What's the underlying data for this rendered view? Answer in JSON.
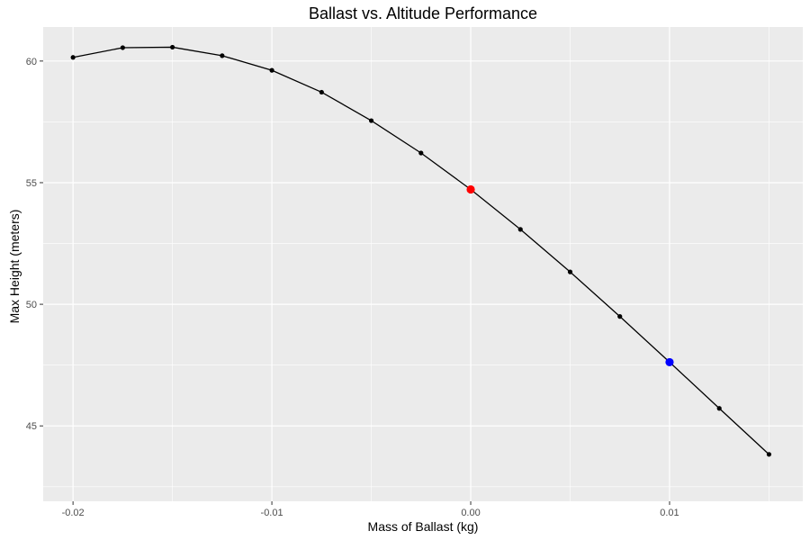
{
  "chart_data": {
    "type": "line",
    "title": "Ballast vs. Altitude Performance",
    "xlabel": "Mass of Ballast (kg)",
    "ylabel": "Max Height (meters)",
    "xlim": [
      -0.0215,
      0.0167
    ],
    "ylim": [
      41.9,
      61.4
    ],
    "x_ticks": [
      -0.02,
      -0.01,
      0.0,
      0.01
    ],
    "x_tick_labels": [
      "-0.02",
      "-0.01",
      "0.00",
      "0.01"
    ],
    "y_ticks": [
      45,
      50,
      55,
      60
    ],
    "y_tick_labels": [
      "45",
      "50",
      "55",
      "60"
    ],
    "grid": true,
    "panel_color": "#ebebeb",
    "line_color": "#000000",
    "series": [
      {
        "x": [
          -0.02,
          -0.0175,
          -0.015,
          -0.0125,
          -0.01,
          -0.0075,
          -0.005,
          -0.0025,
          0.0,
          0.0025,
          0.005,
          0.0075,
          0.01,
          0.0125,
          0.015
        ],
        "y": [
          60.15,
          60.55,
          60.57,
          60.22,
          59.62,
          58.72,
          57.55,
          56.22,
          54.72,
          53.08,
          51.33,
          49.5,
          47.62,
          45.72,
          43.83
        ]
      }
    ],
    "highlights": [
      {
        "x": 0.0,
        "y": 54.72,
        "color": "#ff0000"
      },
      {
        "x": 0.01,
        "y": 47.62,
        "color": "#0000ff"
      }
    ]
  }
}
